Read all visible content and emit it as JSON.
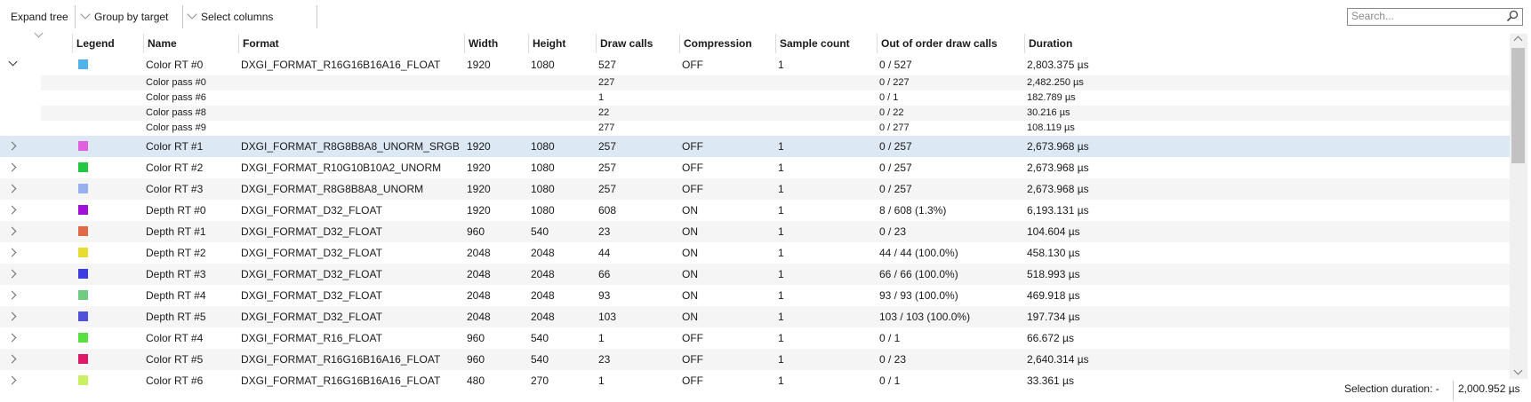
{
  "toolbar": {
    "expand_tree": "Expand tree",
    "group_by_target": "Group by target",
    "select_columns": "Select columns",
    "search_placeholder": "Search..."
  },
  "columns": [
    "Legend",
    "Name",
    "Format",
    "Width",
    "Height",
    "Draw calls",
    "Compression",
    "Sample count",
    "Out of order draw calls",
    "Duration"
  ],
  "rows": [
    {
      "kind": "main",
      "expanded": true,
      "color": "#4fb3e8",
      "name": "Color RT #0",
      "format": "DXGI_FORMAT_R16G16B16A16_FLOAT",
      "width": "1920",
      "height": "1080",
      "draw_calls": "527",
      "compression": "OFF",
      "sample_count": "1",
      "out_of_order": "0 / 527",
      "duration": "2,803.375 µs"
    },
    {
      "kind": "sub",
      "name": "Color pass #0",
      "draw_calls": "227",
      "out_of_order": "0 / 227",
      "duration": "2,482.250 µs"
    },
    {
      "kind": "sub",
      "name": "Color pass #6",
      "draw_calls": "1",
      "out_of_order": "0 / 1",
      "duration": "182.789 µs"
    },
    {
      "kind": "sub",
      "name": "Color pass #8",
      "draw_calls": "22",
      "out_of_order": "0 / 22",
      "duration": "30.216 µs"
    },
    {
      "kind": "sub",
      "name": "Color pass #9",
      "draw_calls": "277",
      "out_of_order": "0 / 277",
      "duration": "108.119 µs"
    },
    {
      "kind": "main",
      "selected": true,
      "color": "#e060e0",
      "name": "Color RT #1",
      "format": "DXGI_FORMAT_R8G8B8A8_UNORM_SRGB",
      "width": "1920",
      "height": "1080",
      "draw_calls": "257",
      "compression": "OFF",
      "sample_count": "1",
      "out_of_order": "0 / 257",
      "duration": "2,673.968 µs"
    },
    {
      "kind": "main",
      "color": "#22c840",
      "name": "Color RT #2",
      "format": "DXGI_FORMAT_R10G10B10A2_UNORM",
      "width": "1920",
      "height": "1080",
      "draw_calls": "257",
      "compression": "OFF",
      "sample_count": "1",
      "out_of_order": "0 / 257",
      "duration": "2,673.968 µs"
    },
    {
      "kind": "main",
      "color": "#98b0f0",
      "name": "Color RT #3",
      "format": "DXGI_FORMAT_R8G8B8A8_UNORM",
      "width": "1920",
      "height": "1080",
      "draw_calls": "257",
      "compression": "OFF",
      "sample_count": "1",
      "out_of_order": "0 / 257",
      "duration": "2,673.968 µs"
    },
    {
      "kind": "main",
      "color": "#a010d8",
      "name": "Depth RT #0",
      "format": "DXGI_FORMAT_D32_FLOAT",
      "width": "1920",
      "height": "1080",
      "draw_calls": "608",
      "compression": "ON",
      "sample_count": "1",
      "out_of_order": "8 / 608 (1.3%)",
      "duration": "6,193.131 µs"
    },
    {
      "kind": "main",
      "color": "#e06a48",
      "name": "Depth RT #1",
      "format": "DXGI_FORMAT_D32_FLOAT",
      "width": "960",
      "height": "540",
      "draw_calls": "23",
      "compression": "ON",
      "sample_count": "1",
      "out_of_order": "0 / 23",
      "duration": "104.604 µs"
    },
    {
      "kind": "main",
      "color": "#e8dc30",
      "name": "Depth RT #2",
      "format": "DXGI_FORMAT_D32_FLOAT",
      "width": "2048",
      "height": "2048",
      "draw_calls": "44",
      "compression": "ON",
      "sample_count": "1",
      "out_of_order": "44 / 44 (100.0%)",
      "duration": "458.130 µs"
    },
    {
      "kind": "main",
      "color": "#3c3ce0",
      "name": "Depth RT #3",
      "format": "DXGI_FORMAT_D32_FLOAT",
      "width": "2048",
      "height": "2048",
      "draw_calls": "66",
      "compression": "ON",
      "sample_count": "1",
      "out_of_order": "66 / 66 (100.0%)",
      "duration": "518.993 µs"
    },
    {
      "kind": "main",
      "color": "#70cc80",
      "name": "Depth RT #4",
      "format": "DXGI_FORMAT_D32_FLOAT",
      "width": "2048",
      "height": "2048",
      "draw_calls": "93",
      "compression": "ON",
      "sample_count": "1",
      "out_of_order": "93 / 93 (100.0%)",
      "duration": "469.918 µs"
    },
    {
      "kind": "main",
      "color": "#5050d8",
      "name": "Depth RT #5",
      "format": "DXGI_FORMAT_D32_FLOAT",
      "width": "2048",
      "height": "2048",
      "draw_calls": "103",
      "compression": "ON",
      "sample_count": "1",
      "out_of_order": "103 / 103 (100.0%)",
      "duration": "197.734 µs"
    },
    {
      "kind": "main",
      "color": "#58e040",
      "name": "Color RT #4",
      "format": "DXGI_FORMAT_R16_FLOAT",
      "width": "960",
      "height": "540",
      "draw_calls": "1",
      "compression": "OFF",
      "sample_count": "1",
      "out_of_order": "0 / 1",
      "duration": "66.672 µs"
    },
    {
      "kind": "main",
      "color": "#e01868",
      "name": "Color RT #5",
      "format": "DXGI_FORMAT_R16G16B16A16_FLOAT",
      "width": "960",
      "height": "540",
      "draw_calls": "23",
      "compression": "OFF",
      "sample_count": "1",
      "out_of_order": "0 / 23",
      "duration": "2,640.314 µs"
    },
    {
      "kind": "main",
      "color": "#c8f060",
      "name": "Color RT #6",
      "format": "DXGI_FORMAT_R16G16B16A16_FLOAT",
      "width": "480",
      "height": "270",
      "draw_calls": "1",
      "compression": "OFF",
      "sample_count": "1",
      "out_of_order": "0 / 1",
      "duration": "33.361 µs"
    }
  ],
  "status": {
    "selection_label": "Selection duration: -",
    "selection_value": "2,000.952 µs"
  }
}
